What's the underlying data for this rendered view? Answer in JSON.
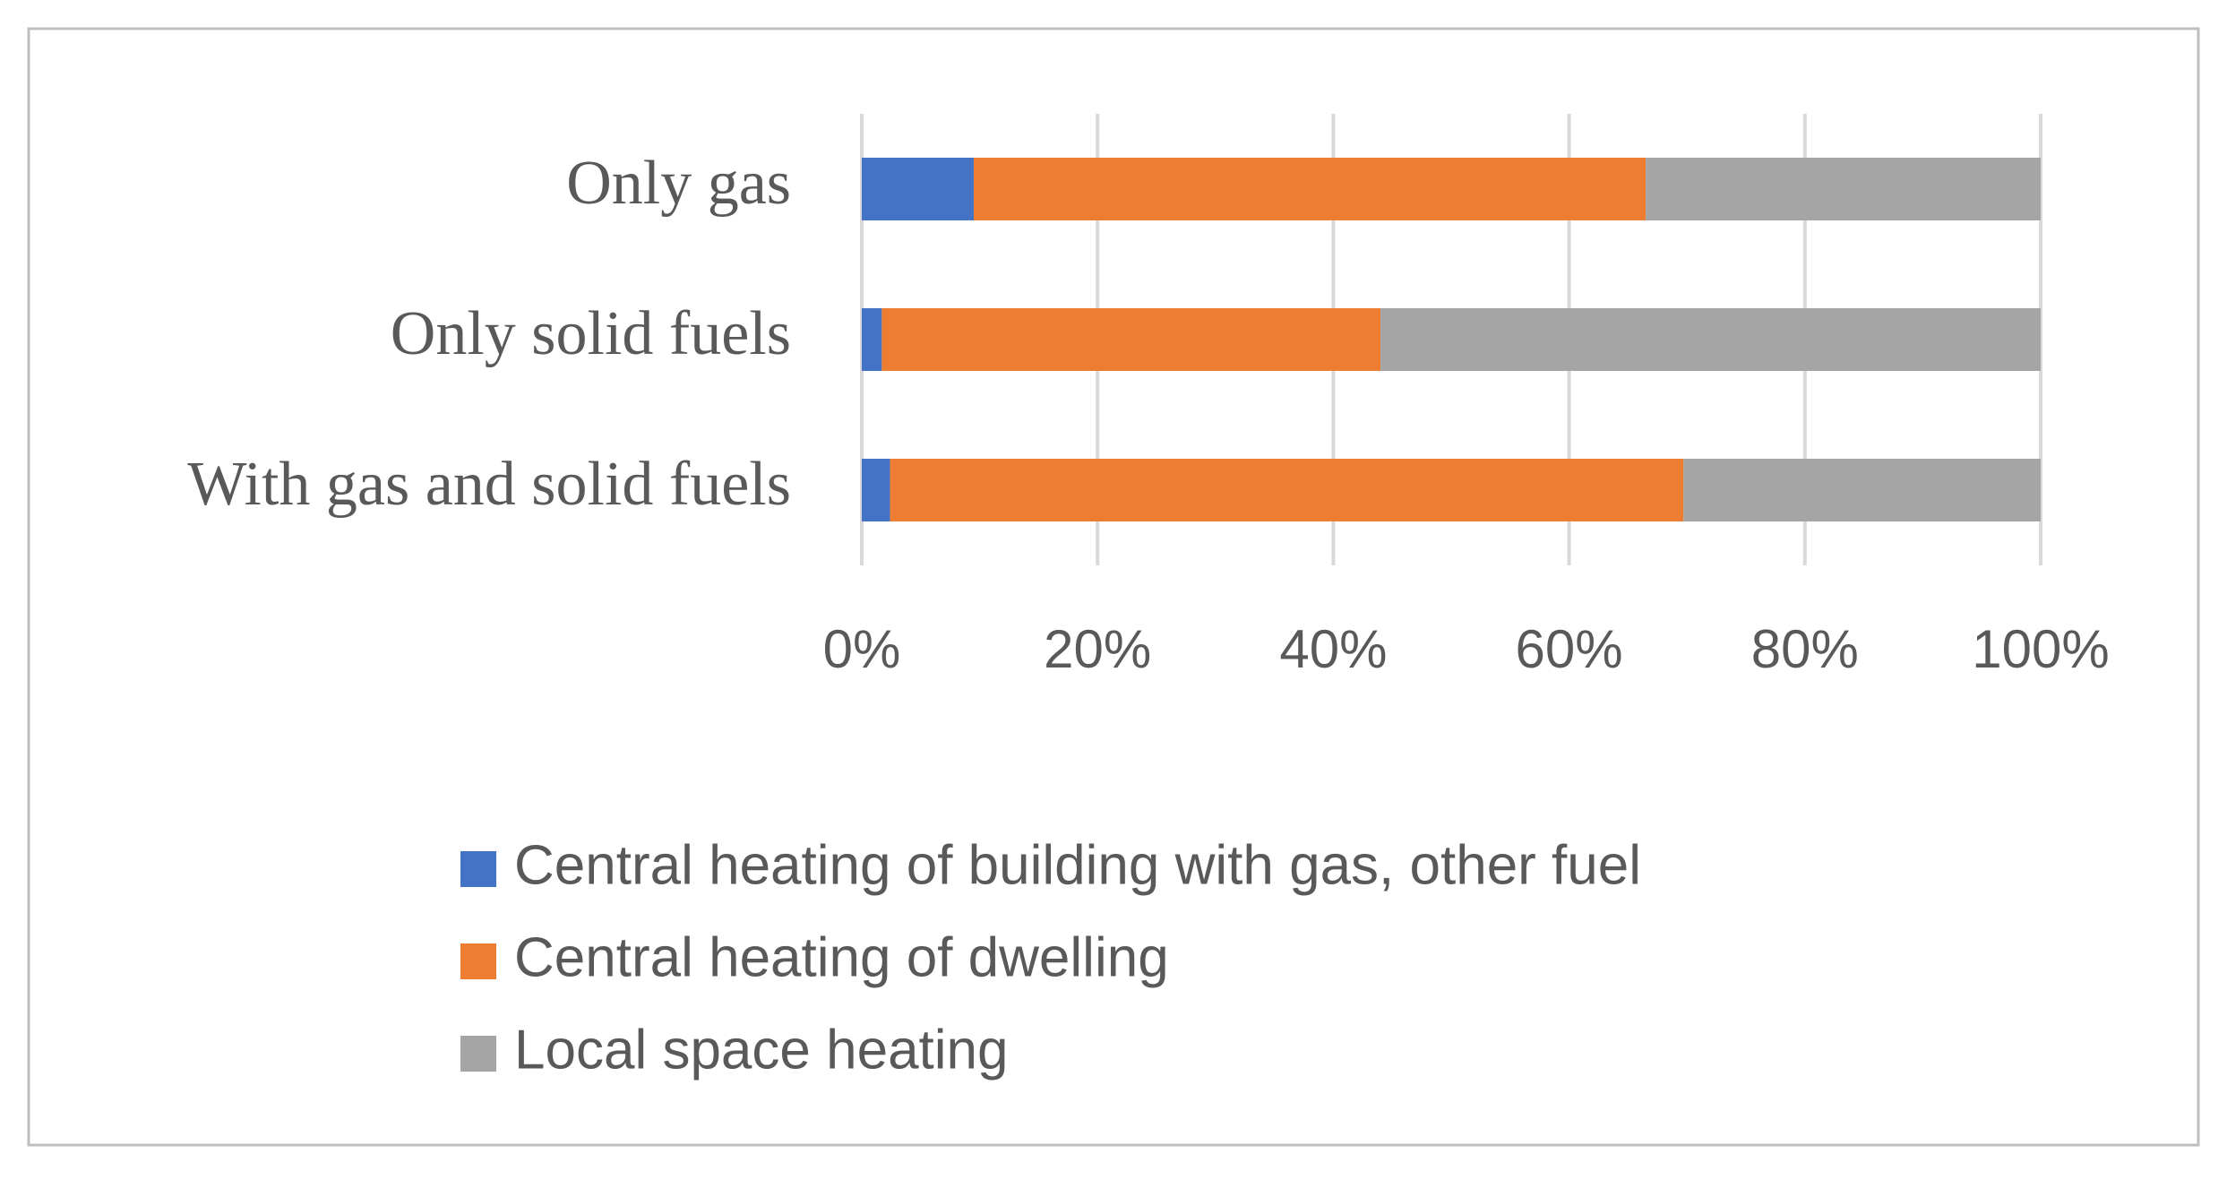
{
  "chart_data": {
    "type": "stacked-bar-horizontal",
    "categories": [
      "Only gas",
      "Only solid fuels",
      "With gas and solid fuels"
    ],
    "series": [
      {
        "name": "Central heating of building with gas, other fuel",
        "color": "#4472c4",
        "values": [
          9.5,
          1.7,
          2.4
        ]
      },
      {
        "name": "Central heating of dwelling",
        "color": "#ed7d31",
        "values": [
          57,
          42.3,
          67.3
        ]
      },
      {
        "name": "Local space heating",
        "color": "#a5a5a5",
        "values": [
          33.5,
          56,
          30.3
        ]
      }
    ],
    "xlim": [
      0,
      100
    ],
    "xticks": [
      {
        "value": 0,
        "label": "0%"
      },
      {
        "value": 20,
        "label": "20%"
      },
      {
        "value": 40,
        "label": "40%"
      },
      {
        "value": 60,
        "label": "60%"
      },
      {
        "value": 80,
        "label": "80%"
      },
      {
        "value": 100,
        "label": "100%"
      }
    ],
    "grid": true,
    "legend": "bottom"
  }
}
